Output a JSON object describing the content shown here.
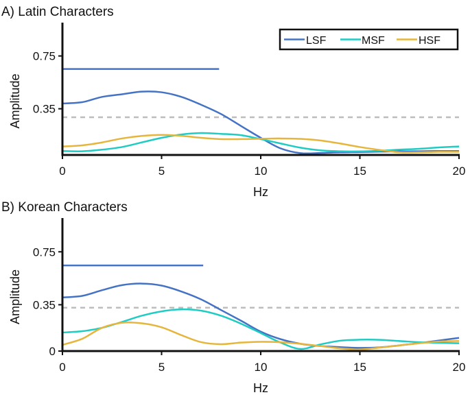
{
  "chart_data": [
    {
      "type": "line",
      "title": "A) Latin Characters",
      "xlabel": "Hz",
      "ylabel": "Amplitude",
      "xlim": [
        0,
        20
      ],
      "ylim": [
        0,
        1.0
      ],
      "xticks": [
        "0",
        "5",
        "10",
        "15",
        "20"
      ],
      "xtick_values": [
        0,
        5,
        10,
        15,
        20
      ],
      "yticks": [
        "0.75",
        "0.35"
      ],
      "ytick_values": [
        0.75,
        0.35
      ],
      "legend": {
        "placement": "top-right",
        "entries": [
          "LSF",
          "MSF",
          "HSF"
        ]
      },
      "threshold_dashed": 0.286,
      "lsf_reference_line": {
        "y": 0.651,
        "x_end": 7.9
      },
      "x": [
        0,
        1,
        2,
        3,
        4,
        5,
        6,
        7,
        8,
        9,
        10,
        11,
        12,
        13,
        14,
        15,
        16,
        17,
        18,
        19,
        20
      ],
      "series": [
        {
          "name": "LSF",
          "color": "#4472C4",
          "values": [
            0.39,
            0.4,
            0.44,
            0.46,
            0.48,
            0.475,
            0.44,
            0.38,
            0.31,
            0.22,
            0.13,
            0.05,
            0.014,
            0.015,
            0.02,
            0.022,
            0.025,
            0.027,
            0.028,
            0.03,
            0.03
          ]
        },
        {
          "name": "MSF",
          "color": "#1FCBC3",
          "values": [
            0.03,
            0.028,
            0.04,
            0.06,
            0.095,
            0.13,
            0.155,
            0.166,
            0.16,
            0.15,
            0.12,
            0.087,
            0.055,
            0.035,
            0.028,
            0.027,
            0.032,
            0.04,
            0.047,
            0.057,
            0.064
          ]
        },
        {
          "name": "HSF",
          "color": "#E5B53C",
          "values": [
            0.064,
            0.073,
            0.095,
            0.125,
            0.144,
            0.152,
            0.145,
            0.13,
            0.12,
            0.12,
            0.123,
            0.125,
            0.122,
            0.11,
            0.087,
            0.06,
            0.038,
            0.02,
            0.02,
            0.024,
            0.024
          ]
        }
      ]
    },
    {
      "type": "line",
      "title": "B) Korean Characters",
      "xlabel": "Hz",
      "ylabel": "Amplitude",
      "xlim": [
        0,
        20
      ],
      "ylim": [
        0,
        1.0
      ],
      "xticks": [
        "0",
        "5",
        "10",
        "15",
        "20"
      ],
      "xtick_values": [
        0,
        5,
        10,
        15,
        20
      ],
      "yticks": [
        "0.75",
        "0.35",
        "0"
      ],
      "ytick_values": [
        0.75,
        0.35,
        0
      ],
      "threshold_dashed": 0.328,
      "lsf_reference_line": {
        "y": 0.647,
        "x_end": 7.1
      },
      "x": [
        0,
        1,
        2,
        3,
        4,
        5,
        6,
        7,
        8,
        9,
        10,
        11,
        12,
        13,
        14,
        15,
        16,
        17,
        18,
        19,
        20
      ],
      "series": [
        {
          "name": "LSF",
          "color": "#4472C4",
          "values": [
            0.405,
            0.417,
            0.46,
            0.498,
            0.51,
            0.495,
            0.45,
            0.39,
            0.31,
            0.23,
            0.147,
            0.09,
            0.055,
            0.038,
            0.03,
            0.024,
            0.028,
            0.043,
            0.06,
            0.08,
            0.1
          ]
        },
        {
          "name": "MSF",
          "color": "#1FCBC3",
          "values": [
            0.14,
            0.15,
            0.176,
            0.22,
            0.267,
            0.3,
            0.315,
            0.305,
            0.267,
            0.207,
            0.136,
            0.064,
            0.016,
            0.05,
            0.078,
            0.086,
            0.085,
            0.076,
            0.067,
            0.062,
            0.059
          ]
        },
        {
          "name": "HSF",
          "color": "#E5B53C",
          "values": [
            0.047,
            0.093,
            0.176,
            0.214,
            0.21,
            0.18,
            0.12,
            0.067,
            0.052,
            0.064,
            0.07,
            0.067,
            0.055,
            0.038,
            0.02,
            0.012,
            0.026,
            0.043,
            0.059,
            0.072,
            0.076
          ]
        }
      ]
    }
  ]
}
